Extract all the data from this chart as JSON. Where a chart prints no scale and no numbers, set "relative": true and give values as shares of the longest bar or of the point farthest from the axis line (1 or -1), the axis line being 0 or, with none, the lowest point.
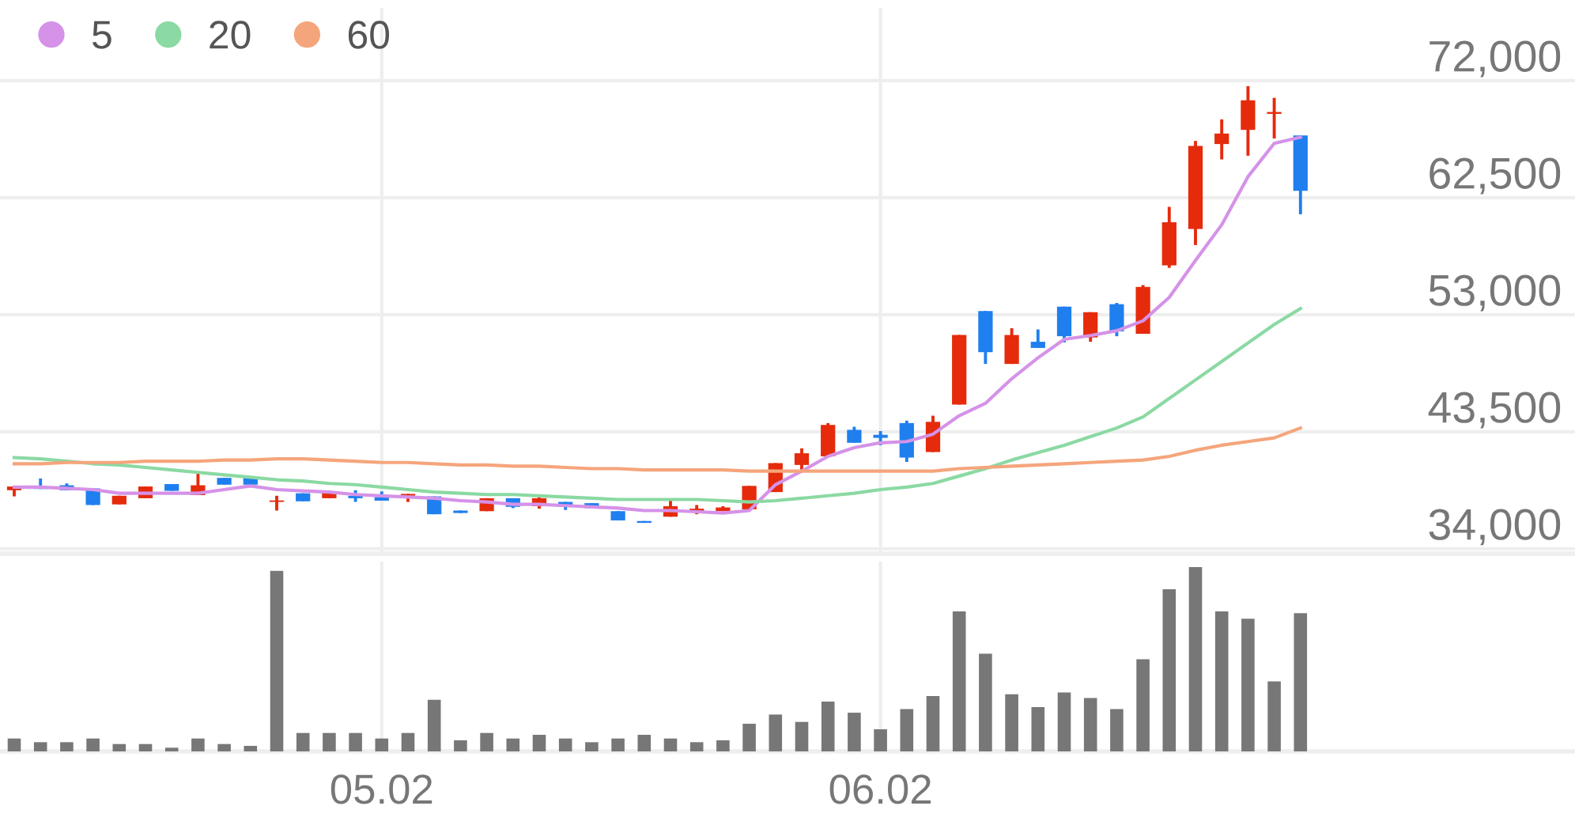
{
  "chart_data": [
    {
      "type": "candlestick",
      "categories": [
        null,
        null,
        null,
        null,
        null,
        null,
        null,
        null,
        null,
        null,
        null,
        null,
        null,
        null,
        "05.02",
        null,
        null,
        null,
        null,
        null,
        null,
        null,
        null,
        null,
        null,
        null,
        null,
        null,
        null,
        null,
        null,
        null,
        null,
        "06.02",
        null,
        null,
        null,
        null,
        null,
        null,
        null,
        null,
        null,
        null,
        null,
        null,
        null,
        null,
        null,
        null
      ],
      "ohlc": [
        [
          38750,
          39050,
          38250,
          39050
        ],
        [
          39050,
          39700,
          38850,
          38850
        ],
        [
          39150,
          39300,
          38750,
          38750
        ],
        [
          38900,
          38900,
          37550,
          37550
        ],
        [
          37600,
          38300,
          37600,
          38300
        ],
        [
          38100,
          39050,
          38100,
          39050
        ],
        [
          39250,
          39250,
          38700,
          38700
        ],
        [
          38350,
          40100,
          38350,
          39150
        ],
        [
          39750,
          39750,
          39200,
          39200
        ],
        [
          39750,
          39750,
          39200,
          39200
        ],
        [
          37800,
          38300,
          37100,
          37900
        ],
        [
          38500,
          38500,
          37850,
          37850
        ],
        [
          38100,
          38550,
          38100,
          38550
        ],
        [
          38300,
          38750,
          37800,
          38100
        ],
        [
          38200,
          38650,
          37900,
          37900
        ],
        [
          38300,
          38450,
          37800,
          38450
        ],
        [
          38250,
          38250,
          36800,
          36800
        ],
        [
          37100,
          37100,
          36900,
          36900
        ],
        [
          37050,
          38100,
          37050,
          38100
        ],
        [
          38100,
          38100,
          37300,
          37400
        ],
        [
          37450,
          38200,
          37250,
          38100
        ],
        [
          37800,
          37800,
          37150,
          37400
        ],
        [
          37700,
          37700,
          37300,
          37300
        ],
        [
          37050,
          37050,
          36300,
          36300
        ],
        [
          36250,
          36250,
          36100,
          36100
        ],
        [
          36600,
          37900,
          36600,
          37450
        ],
        [
          37050,
          37550,
          36800,
          37250
        ],
        [
          37050,
          37450,
          37050,
          37350
        ],
        [
          37200,
          39100,
          37100,
          39100
        ],
        [
          38600,
          40950,
          38600,
          40950
        ],
        [
          40800,
          42150,
          40350,
          41750
        ],
        [
          41500,
          44200,
          41500,
          44050
        ],
        [
          43650,
          43900,
          42600,
          42600
        ],
        [
          43250,
          43550,
          42400,
          43000
        ],
        [
          44200,
          44400,
          41050,
          41400
        ],
        [
          41850,
          44800,
          41850,
          44300
        ],
        [
          45700,
          51350,
          45700,
          51350
        ],
        [
          53300,
          53300,
          49000,
          49950
        ],
        [
          49000,
          51900,
          49000,
          51350
        ],
        [
          50800,
          51800,
          50300,
          50300
        ],
        [
          53650,
          53650,
          50750,
          51250
        ],
        [
          51150,
          53200,
          50800,
          53200
        ],
        [
          53850,
          53950,
          51250,
          51650
        ],
        [
          51450,
          55400,
          51450,
          55250
        ],
        [
          57000,
          61750,
          56800,
          60500
        ],
        [
          59950,
          67100,
          58650,
          66700
        ],
        [
          66850,
          68850,
          65600,
          67700
        ],
        [
          68000,
          71550,
          65900,
          70400
        ],
        [
          69300,
          70600,
          67300,
          69450
        ],
        [
          67550,
          67550,
          61150,
          63050
        ]
      ],
      "colors": [
        "#e52b0c",
        "#1f7fef",
        "#1f7fef",
        "#1f7fef",
        "#e52b0c",
        "#e52b0c",
        "#1f7fef",
        "#e52b0c",
        "#1f7fef",
        "#1f7fef",
        "#e52b0c",
        "#1f7fef",
        "#e52b0c",
        "#1f7fef",
        "#1f7fef",
        "#e52b0c",
        "#1f7fef",
        "#1f7fef",
        "#e52b0c",
        "#1f7fef",
        "#e52b0c",
        "#1f7fef",
        "#1f7fef",
        "#1f7fef",
        "#1f7fef",
        "#e52b0c",
        "#e52b0c",
        "#e52b0c",
        "#e52b0c",
        "#e52b0c",
        "#e52b0c",
        "#e52b0c",
        "#1f7fef",
        "#1f7fef",
        "#1f7fef",
        "#e52b0c",
        "#e52b0c",
        "#1f7fef",
        "#e52b0c",
        "#1f7fef",
        "#1f7fef",
        "#e52b0c",
        "#1f7fef",
        "#e52b0c",
        "#e52b0c",
        "#e52b0c",
        "#e52b0c",
        "#e52b0c",
        "#e52b0c",
        "#1f7fef"
      ],
      "series": [
        {
          "name": "5",
          "type": "line",
          "color": "#d592e8",
          "values": [
            39000,
            39000,
            38900,
            38800,
            38500,
            38500,
            38500,
            38500,
            38800,
            39100,
            38800,
            38700,
            38600,
            38400,
            38300,
            38200,
            38100,
            37900,
            37800,
            37600,
            37600,
            37500,
            37400,
            37300,
            37100,
            37100,
            37000,
            36900,
            37100,
            39200,
            40300,
            41500,
            42200,
            42600,
            42700,
            43300,
            44800,
            45800,
            47800,
            49500,
            51000,
            51300,
            51700,
            52500,
            54400,
            57400,
            60300,
            64200,
            66900,
            67400
          ]
        },
        {
          "name": "20",
          "type": "line",
          "color": "#8bd9a3",
          "values": [
            41400,
            41300,
            41100,
            40900,
            40800,
            40600,
            40400,
            40200,
            40000,
            39800,
            39600,
            39500,
            39300,
            39200,
            39000,
            38800,
            38600,
            38500,
            38400,
            38400,
            38300,
            38200,
            38100,
            38000,
            38000,
            38000,
            38000,
            37900,
            37800,
            37900,
            38100,
            38300,
            38500,
            38800,
            39000,
            39300,
            39900,
            40500,
            41200,
            41800,
            42400,
            43100,
            43800,
            44700,
            46200,
            47700,
            49200,
            50700,
            52200,
            53500
          ]
        },
        {
          "name": "60",
          "type": "line",
          "color": "#f5a57c",
          "values": [
            40900,
            40900,
            41000,
            41000,
            41000,
            41100,
            41100,
            41100,
            41200,
            41200,
            41300,
            41300,
            41200,
            41100,
            41000,
            41000,
            40900,
            40800,
            40800,
            40700,
            40700,
            40600,
            40500,
            40500,
            40400,
            40400,
            40400,
            40400,
            40300,
            40300,
            40300,
            40300,
            40300,
            40300,
            40300,
            40300,
            40500,
            40600,
            40700,
            40800,
            40900,
            41000,
            41100,
            41200,
            41500,
            42000,
            42400,
            42700,
            43000,
            43800
          ]
        }
      ],
      "ylim": [
        33600,
        77900
      ],
      "yticks": [
        {
          "value": 34000,
          "label": "34,000"
        },
        {
          "value": 43500,
          "label": "43,500"
        },
        {
          "value": 53000,
          "label": "53,000"
        },
        {
          "value": 62500,
          "label": "62,500"
        },
        {
          "value": 72000,
          "label": "72,000"
        }
      ],
      "grid": true,
      "legend": "top left",
      "tick_labels": "y"
    },
    {
      "type": "bar",
      "relative": true,
      "grid": "x",
      "categories": [
        null,
        null,
        null,
        null,
        null,
        null,
        null,
        null,
        null,
        null,
        null,
        null,
        null,
        null,
        "05.02",
        null,
        null,
        null,
        null,
        null,
        null,
        null,
        null,
        null,
        null,
        null,
        null,
        null,
        null,
        null,
        null,
        null,
        null,
        "06.02",
        null,
        null,
        null,
        null,
        null,
        null,
        null,
        null,
        null,
        null,
        null,
        null,
        null,
        null,
        null,
        null
      ],
      "color": "#777777",
      "values": [
        0.07,
        0.05,
        0.05,
        0.07,
        0.04,
        0.04,
        0.02,
        0.07,
        0.04,
        0.03,
        0.98,
        0.1,
        0.1,
        0.1,
        0.07,
        0.1,
        0.28,
        0.06,
        0.1,
        0.07,
        0.09,
        0.07,
        0.05,
        0.07,
        0.09,
        0.07,
        0.05,
        0.06,
        0.15,
        0.2,
        0.16,
        0.27,
        0.21,
        0.12,
        0.23,
        0.3,
        0.76,
        0.53,
        0.31,
        0.24,
        0.32,
        0.29,
        0.23,
        0.5,
        0.88,
        1,
        0.76,
        0.72,
        0.38,
        0.75
      ],
      "tick_labels": "x"
    }
  ]
}
